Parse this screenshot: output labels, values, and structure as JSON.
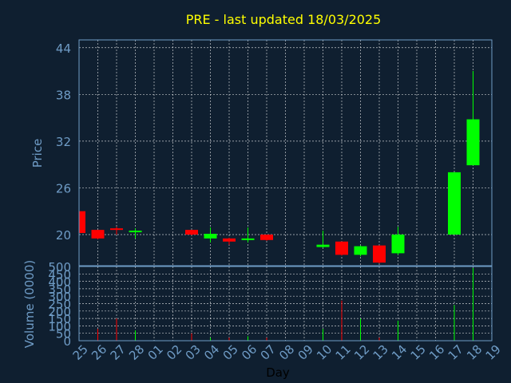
{
  "colors": {
    "background": "#0f1f30",
    "up": "#00ff00",
    "down": "#ff0000",
    "axis_text": "#6f9cc6",
    "title": "#ffff00",
    "grid": "#ffffff"
  },
  "chart_data": {
    "type": "candlestick",
    "title": "PRE - last updated 18/03/2025",
    "xlabel": "Day",
    "ylabel": "Price",
    "ylabel2": "Volume (0000)",
    "categories": [
      "25",
      "26",
      "27",
      "28",
      "01",
      "02",
      "03",
      "04",
      "05",
      "06",
      "07",
      "08",
      "09",
      "10",
      "11",
      "12",
      "13",
      "14",
      "15",
      "16",
      "17",
      "18",
      "19"
    ],
    "ylim": [
      16,
      45
    ],
    "yticks": [
      20,
      26,
      32,
      38,
      44
    ],
    "volume_ylim": [
      0,
      500
    ],
    "volume_yticks": [
      0,
      50,
      100,
      150,
      200,
      250,
      300,
      350,
      400,
      450,
      500
    ],
    "candles": [
      {
        "day": "25",
        "open": 23.0,
        "high": 23.0,
        "low": 20.0,
        "close": 20.2,
        "volume": 0
      },
      {
        "day": "26",
        "open": 20.6,
        "high": 20.6,
        "low": 19.4,
        "close": 19.5,
        "volume": 80
      },
      {
        "day": "27",
        "open": 20.8,
        "high": 21.0,
        "low": 20.0,
        "close": 20.6,
        "volume": 150
      },
      {
        "day": "28",
        "open": 20.4,
        "high": 20.8,
        "low": 19.5,
        "close": 20.5,
        "volume": 70
      },
      {
        "day": "03",
        "open": 20.6,
        "high": 20.6,
        "low": 19.9,
        "close": 20.0,
        "volume": 50
      },
      {
        "day": "04",
        "open": 19.5,
        "high": 20.9,
        "low": 19.0,
        "close": 20.1,
        "volume": 20
      },
      {
        "day": "05",
        "open": 19.5,
        "high": 19.6,
        "low": 18.7,
        "close": 19.1,
        "volume": 20
      },
      {
        "day": "06",
        "open": 19.3,
        "high": 20.9,
        "low": 19.0,
        "close": 19.5,
        "volume": 30
      },
      {
        "day": "07",
        "open": 20.0,
        "high": 20.0,
        "low": 19.2,
        "close": 19.3,
        "volume": 20
      },
      {
        "day": "10",
        "open": 18.4,
        "high": 20.5,
        "low": 18.3,
        "close": 18.7,
        "volume": 80
      },
      {
        "day": "11",
        "open": 19.1,
        "high": 19.1,
        "low": 17.3,
        "close": 17.4,
        "volume": 270
      },
      {
        "day": "12",
        "open": 17.4,
        "high": 18.6,
        "low": 17.2,
        "close": 18.5,
        "volume": 150
      },
      {
        "day": "13",
        "open": 18.6,
        "high": 18.6,
        "low": 16.3,
        "close": 16.4,
        "volume": 20
      },
      {
        "day": "14",
        "open": 17.6,
        "high": 21.0,
        "low": 17.4,
        "close": 20.0,
        "volume": 135
      },
      {
        "day": "17",
        "open": 20.0,
        "high": 28.0,
        "low": 20.0,
        "close": 28.0,
        "volume": 240
      },
      {
        "day": "18",
        "open": 28.9,
        "high": 41.0,
        "low": 28.9,
        "close": 34.8,
        "volume": 490
      }
    ]
  }
}
